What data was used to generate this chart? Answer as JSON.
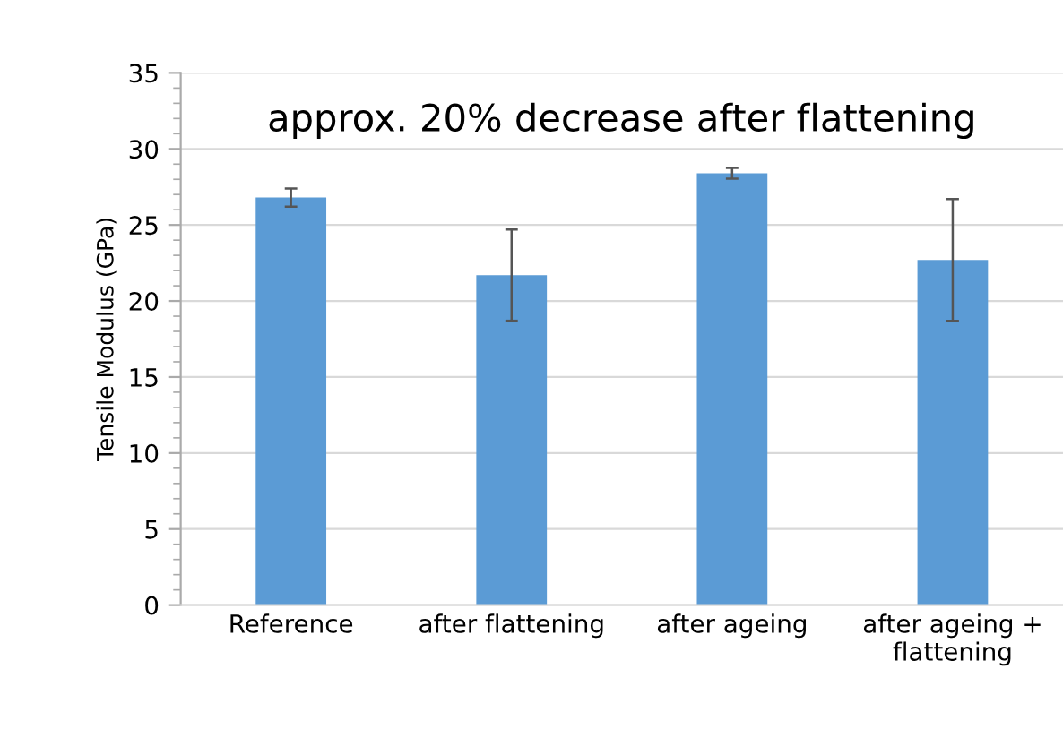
{
  "chart_data": {
    "type": "bar",
    "ylabel": "Tensile Modulus (GPa)",
    "annotations": [
      "approx. 20% decrease after flattening"
    ],
    "categories": [
      "Reference",
      "after flattening",
      "after ageing",
      "after ageing +\nflattening"
    ],
    "values": [
      26.8,
      21.7,
      28.4,
      22.7
    ],
    "errors": [
      0.6,
      3.0,
      0.35,
      4.0
    ],
    "color": "#5b9bd5",
    "ylim": [
      0,
      35
    ],
    "yticks": [
      0,
      5,
      10,
      15,
      20,
      25,
      30,
      35
    ],
    "grid": "y"
  }
}
